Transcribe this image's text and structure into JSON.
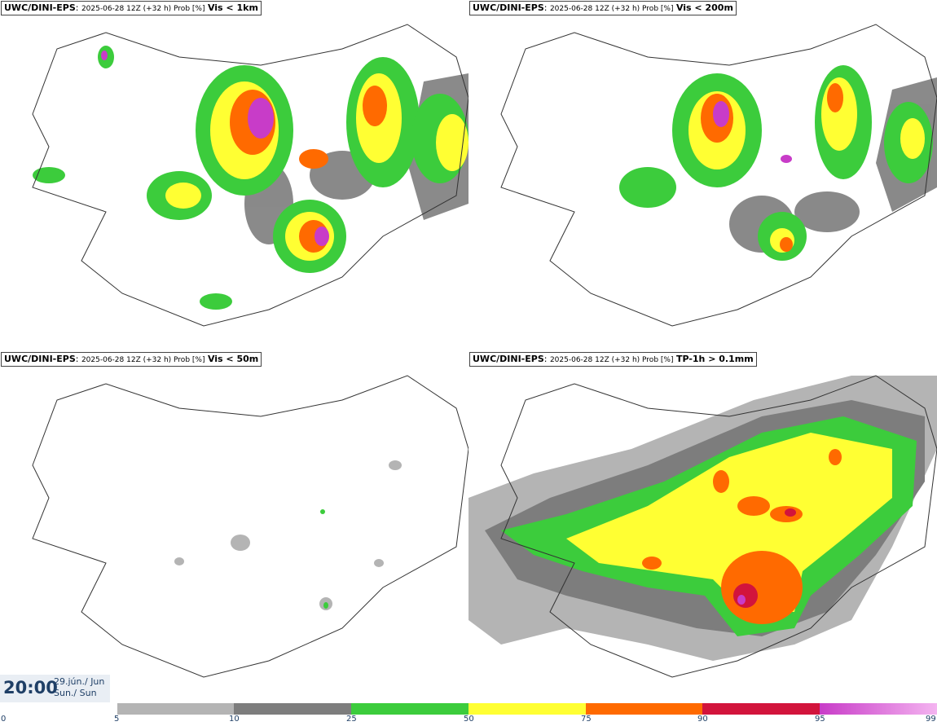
{
  "panels": [
    {
      "model": "UWC/DINI-EPS",
      "run": "2025-06-28 12Z (+32 h) Prob [%]",
      "field": "Vis < 1km"
    },
    {
      "model": "UWC/DINI-EPS",
      "run": "2025-06-28 12Z (+32 h) Prob [%]",
      "field": "Vis < 200m"
    },
    {
      "model": "UWC/DINI-EPS",
      "run": "2025-06-28 12Z (+32 h) Prob [%]",
      "field": "Vis < 50m"
    },
    {
      "model": "UWC/DINI-EPS",
      "run": "2025-06-28 12Z (+32 h) Prob [%]",
      "field": "TP-1h > 0.1mm"
    }
  ],
  "valid_time": {
    "time": "20:00",
    "date_line1": "29.jún./ Jun",
    "date_line2": "Sun./ Sun"
  },
  "legend": {
    "ticks": [
      "0",
      "5",
      "10",
      "25",
      "50",
      "75",
      "90",
      "95",
      "99"
    ],
    "colors": {
      "5": "#b4b4b4",
      "10": "#7d7d7d",
      "25": "#3ccc3c",
      "50": "#ffff33",
      "75": "#ff6a00",
      "90": "#d2143c",
      "95": "#c83cc8",
      "99": "#f4b4f0"
    }
  }
}
